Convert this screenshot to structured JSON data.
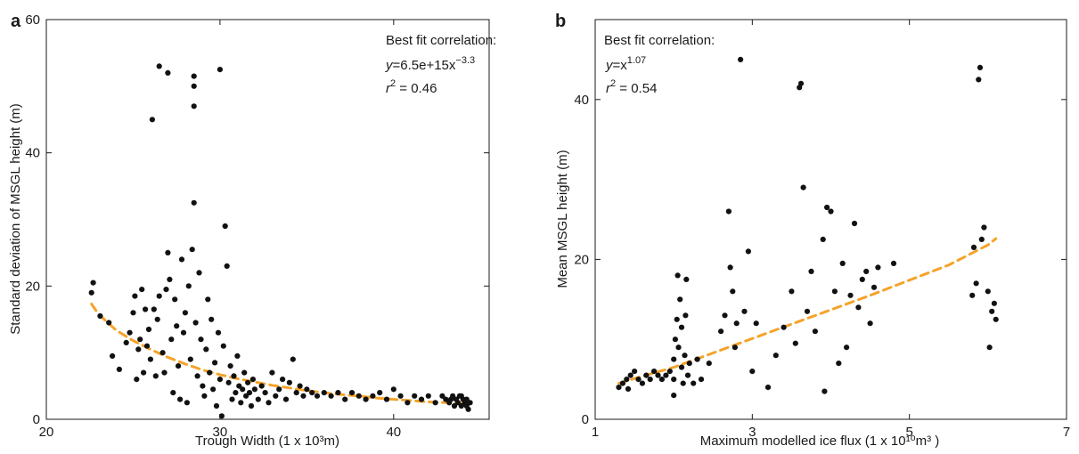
{
  "chart_data": [
    {
      "type": "scatter",
      "panel": "a",
      "xlabel": "Trough Width (1 x 10³m)",
      "ylabel": "Standard deviation of MSGL height (m)",
      "xlim": [
        20,
        45.5
      ],
      "ylim": [
        0,
        60
      ],
      "xticks": [
        20,
        30,
        40
      ],
      "yticks": [
        0,
        20,
        40,
        60
      ],
      "grid": false,
      "points_color": "#111111",
      "annotation": {
        "title": "Best fit correlation:",
        "eq_y": "y",
        "eq_rhs": "=6.5e+15x",
        "eq_exp": "−3.3",
        "r_label": "r",
        "r_sup": "2",
        "r_value": " = 0.46"
      },
      "fit": {
        "color": "#f5a32a",
        "style": "dashed",
        "x": [
          22.6,
          23,
          24,
          25,
          26,
          27,
          28,
          29,
          30,
          31,
          32,
          33,
          34,
          35,
          36,
          37,
          38,
          39,
          40,
          41,
          42,
          43,
          44,
          44.3
        ],
        "y": [
          17.3,
          15.8,
          13.4,
          11.8,
          10.5,
          9.3,
          8.3,
          7.4,
          6.7,
          6.1,
          5.6,
          5.1,
          4.7,
          4.3,
          4.0,
          3.7,
          3.5,
          3.2,
          3.0,
          2.8,
          2.6,
          2.5,
          2.4,
          2.4
        ]
      },
      "points": [
        [
          22.6,
          19.0
        ],
        [
          22.7,
          20.5
        ],
        [
          23.1,
          15.5
        ],
        [
          23.6,
          14.5
        ],
        [
          23.8,
          9.5
        ],
        [
          24.2,
          7.5
        ],
        [
          24.6,
          11.5
        ],
        [
          24.8,
          13.0
        ],
        [
          25.0,
          16.0
        ],
        [
          25.1,
          18.5
        ],
        [
          25.2,
          6.0
        ],
        [
          25.3,
          10.5
        ],
        [
          25.4,
          12.0
        ],
        [
          25.5,
          19.5
        ],
        [
          25.6,
          7.0
        ],
        [
          25.7,
          16.5
        ],
        [
          25.8,
          11.0
        ],
        [
          25.9,
          13.5
        ],
        [
          26.0,
          9.0
        ],
        [
          26.1,
          45.0
        ],
        [
          26.2,
          16.5
        ],
        [
          26.3,
          6.5
        ],
        [
          26.4,
          15.0
        ],
        [
          26.5,
          53.0
        ],
        [
          26.5,
          18.5
        ],
        [
          26.7,
          10.0
        ],
        [
          26.8,
          7.0
        ],
        [
          26.9,
          19.5
        ],
        [
          27.0,
          52.0
        ],
        [
          27.0,
          25.0
        ],
        [
          27.1,
          21.0
        ],
        [
          27.2,
          12.0
        ],
        [
          27.3,
          4.0
        ],
        [
          27.4,
          18.0
        ],
        [
          27.5,
          14.0
        ],
        [
          27.6,
          8.0
        ],
        [
          27.7,
          3.0
        ],
        [
          27.8,
          24.0
        ],
        [
          27.9,
          13.0
        ],
        [
          28.0,
          16.0
        ],
        [
          28.1,
          2.5
        ],
        [
          28.2,
          20.0
        ],
        [
          28.3,
          9.0
        ],
        [
          28.4,
          25.5
        ],
        [
          28.5,
          50.0
        ],
        [
          28.5,
          51.5
        ],
        [
          28.5,
          47.0
        ],
        [
          28.5,
          32.5
        ],
        [
          28.6,
          14.5
        ],
        [
          28.7,
          6.5
        ],
        [
          28.8,
          22.0
        ],
        [
          28.9,
          12.0
        ],
        [
          29.0,
          5.0
        ],
        [
          29.1,
          3.5
        ],
        [
          29.2,
          10.5
        ],
        [
          29.3,
          18.0
        ],
        [
          29.4,
          7.0
        ],
        [
          29.5,
          15.0
        ],
        [
          29.6,
          4.5
        ],
        [
          29.7,
          8.5
        ],
        [
          29.8,
          2.0
        ],
        [
          29.9,
          13.0
        ],
        [
          30.0,
          52.5
        ],
        [
          30.0,
          6.0
        ],
        [
          30.1,
          0.5
        ],
        [
          30.2,
          11.0
        ],
        [
          30.3,
          29.0
        ],
        [
          30.4,
          23.0
        ],
        [
          30.5,
          5.5
        ],
        [
          30.6,
          8.0
        ],
        [
          30.7,
          3.0
        ],
        [
          30.8,
          6.5
        ],
        [
          30.9,
          4.0
        ],
        [
          31.0,
          9.5
        ],
        [
          31.1,
          5.0
        ],
        [
          31.2,
          2.5
        ],
        [
          31.3,
          4.5
        ],
        [
          31.4,
          7.0
        ],
        [
          31.5,
          3.5
        ],
        [
          31.6,
          5.5
        ],
        [
          31.7,
          4.0
        ],
        [
          31.8,
          2.0
        ],
        [
          31.9,
          6.0
        ],
        [
          32.0,
          4.5
        ],
        [
          32.2,
          3.0
        ],
        [
          32.4,
          5.0
        ],
        [
          32.6,
          4.0
        ],
        [
          32.8,
          2.5
        ],
        [
          33.0,
          7.0
        ],
        [
          33.2,
          3.5
        ],
        [
          33.4,
          4.5
        ],
        [
          33.6,
          6.0
        ],
        [
          33.8,
          3.0
        ],
        [
          34.0,
          5.5
        ],
        [
          34.2,
          9.0
        ],
        [
          34.4,
          4.0
        ],
        [
          34.6,
          5.0
        ],
        [
          34.8,
          3.5
        ],
        [
          35.0,
          4.5
        ],
        [
          35.3,
          4.0
        ],
        [
          35.6,
          3.5
        ],
        [
          36.0,
          4.0
        ],
        [
          36.4,
          3.5
        ],
        [
          36.8,
          4.0
        ],
        [
          37.2,
          3.0
        ],
        [
          37.6,
          4.0
        ],
        [
          38.0,
          3.5
        ],
        [
          38.4,
          3.0
        ],
        [
          38.8,
          3.5
        ],
        [
          39.2,
          4.0
        ],
        [
          39.6,
          3.0
        ],
        [
          40.0,
          4.5
        ],
        [
          40.4,
          3.5
        ],
        [
          40.8,
          2.5
        ],
        [
          41.2,
          3.5
        ],
        [
          41.6,
          3.0
        ],
        [
          42.0,
          3.5
        ],
        [
          42.4,
          2.5
        ],
        [
          42.8,
          3.5
        ],
        [
          43.0,
          3.0
        ],
        [
          43.2,
          2.5
        ],
        [
          43.4,
          3.5
        ],
        [
          43.5,
          2.0
        ],
        [
          43.6,
          3.0
        ],
        [
          43.7,
          2.5
        ],
        [
          43.8,
          3.5
        ],
        [
          43.9,
          2.0
        ],
        [
          44.0,
          3.0
        ],
        [
          44.1,
          2.5
        ],
        [
          44.2,
          3.0
        ],
        [
          44.3,
          1.5
        ],
        [
          44.4,
          2.5
        ],
        [
          43.3,
          3.0
        ],
        [
          43.9,
          3.5
        ],
        [
          44.2,
          2.0
        ]
      ]
    },
    {
      "type": "scatter",
      "panel": "b",
      "xlabel": "Maximum modelled ice flux (1 x 10¹⁰m³ )",
      "ylabel": "Mean MSGL height (m)",
      "xlim": [
        1,
        7
      ],
      "ylim": [
        0,
        50
      ],
      "xticks": [
        1,
        3,
        5,
        7
      ],
      "yticks": [
        0,
        20,
        40
      ],
      "grid": false,
      "points_color": "#111111",
      "annotation": {
        "title": "Best fit correlation:",
        "eq_y": "y",
        "eq_rhs": "=x",
        "eq_exp": "1.07",
        "r_label": "r",
        "r_sup": "2",
        "r_value": " = 0.54"
      },
      "fit": {
        "color": "#f5a32a",
        "style": "dashed",
        "x": [
          1.3,
          1.5,
          2.0,
          2.5,
          3.0,
          3.5,
          4.0,
          4.5,
          5.0,
          5.5,
          6.0,
          6.1
        ],
        "y": [
          4.5,
          5.1,
          6.5,
          8.3,
          10.1,
          11.9,
          13.7,
          15.5,
          17.4,
          19.3,
          21.8,
          22.6
        ]
      },
      "points": [
        [
          1.3,
          4.0
        ],
        [
          1.35,
          4.5
        ],
        [
          1.4,
          5.0
        ],
        [
          1.42,
          3.8
        ],
        [
          1.45,
          5.5
        ],
        [
          1.5,
          6.0
        ],
        [
          1.55,
          5.0
        ],
        [
          1.6,
          4.5
        ],
        [
          1.65,
          5.5
        ],
        [
          1.7,
          5.0
        ],
        [
          1.75,
          6.0
        ],
        [
          1.8,
          5.5
        ],
        [
          1.85,
          5.0
        ],
        [
          1.9,
          5.5
        ],
        [
          1.95,
          6.0
        ],
        [
          2.0,
          5.0
        ],
        [
          2.0,
          7.5
        ],
        [
          2.02,
          10.0
        ],
        [
          2.04,
          12.5
        ],
        [
          2.05,
          18.0
        ],
        [
          2.06,
          9.0
        ],
        [
          2.08,
          15.0
        ],
        [
          2.1,
          6.5
        ],
        [
          2.1,
          11.5
        ],
        [
          2.12,
          4.5
        ],
        [
          2.14,
          8.0
        ],
        [
          2.15,
          13.0
        ],
        [
          2.16,
          17.5
        ],
        [
          2.18,
          5.5
        ],
        [
          2.2,
          7.0
        ],
        [
          2.0,
          3.0
        ],
        [
          2.25,
          4.5
        ],
        [
          2.3,
          7.5
        ],
        [
          2.35,
          5.0
        ],
        [
          2.45,
          7.0
        ],
        [
          2.6,
          11.0
        ],
        [
          2.65,
          13.0
        ],
        [
          2.7,
          26.0
        ],
        [
          2.72,
          19.0
        ],
        [
          2.75,
          16.0
        ],
        [
          2.78,
          9.0
        ],
        [
          2.8,
          12.0
        ],
        [
          2.85,
          45.0
        ],
        [
          2.9,
          13.5
        ],
        [
          2.95,
          21.0
        ],
        [
          3.0,
          6.0
        ],
        [
          3.05,
          12.0
        ],
        [
          3.2,
          4.0
        ],
        [
          3.3,
          8.0
        ],
        [
          3.4,
          11.5
        ],
        [
          3.5,
          16.0
        ],
        [
          3.55,
          9.5
        ],
        [
          3.6,
          41.5
        ],
        [
          3.62,
          42.0
        ],
        [
          3.65,
          29.0
        ],
        [
          3.7,
          13.5
        ],
        [
          3.75,
          18.5
        ],
        [
          3.8,
          11.0
        ],
        [
          3.9,
          22.5
        ],
        [
          3.92,
          3.5
        ],
        [
          3.95,
          26.5
        ],
        [
          4.0,
          26.0
        ],
        [
          4.05,
          16.0
        ],
        [
          4.1,
          7.0
        ],
        [
          4.15,
          19.5
        ],
        [
          4.2,
          9.0
        ],
        [
          4.25,
          15.5
        ],
        [
          4.3,
          24.5
        ],
        [
          4.35,
          14.0
        ],
        [
          4.4,
          17.5
        ],
        [
          4.45,
          18.5
        ],
        [
          4.5,
          12.0
        ],
        [
          4.55,
          16.5
        ],
        [
          4.6,
          19.0
        ],
        [
          4.8,
          19.5
        ],
        [
          5.8,
          15.5
        ],
        [
          5.82,
          21.5
        ],
        [
          5.85,
          17.0
        ],
        [
          5.88,
          42.5
        ],
        [
          5.9,
          44.0
        ],
        [
          5.92,
          22.5
        ],
        [
          5.95,
          24.0
        ],
        [
          6.0,
          16.0
        ],
        [
          6.02,
          9.0
        ],
        [
          6.05,
          13.5
        ],
        [
          6.08,
          14.5
        ],
        [
          6.1,
          12.5
        ]
      ]
    }
  ]
}
